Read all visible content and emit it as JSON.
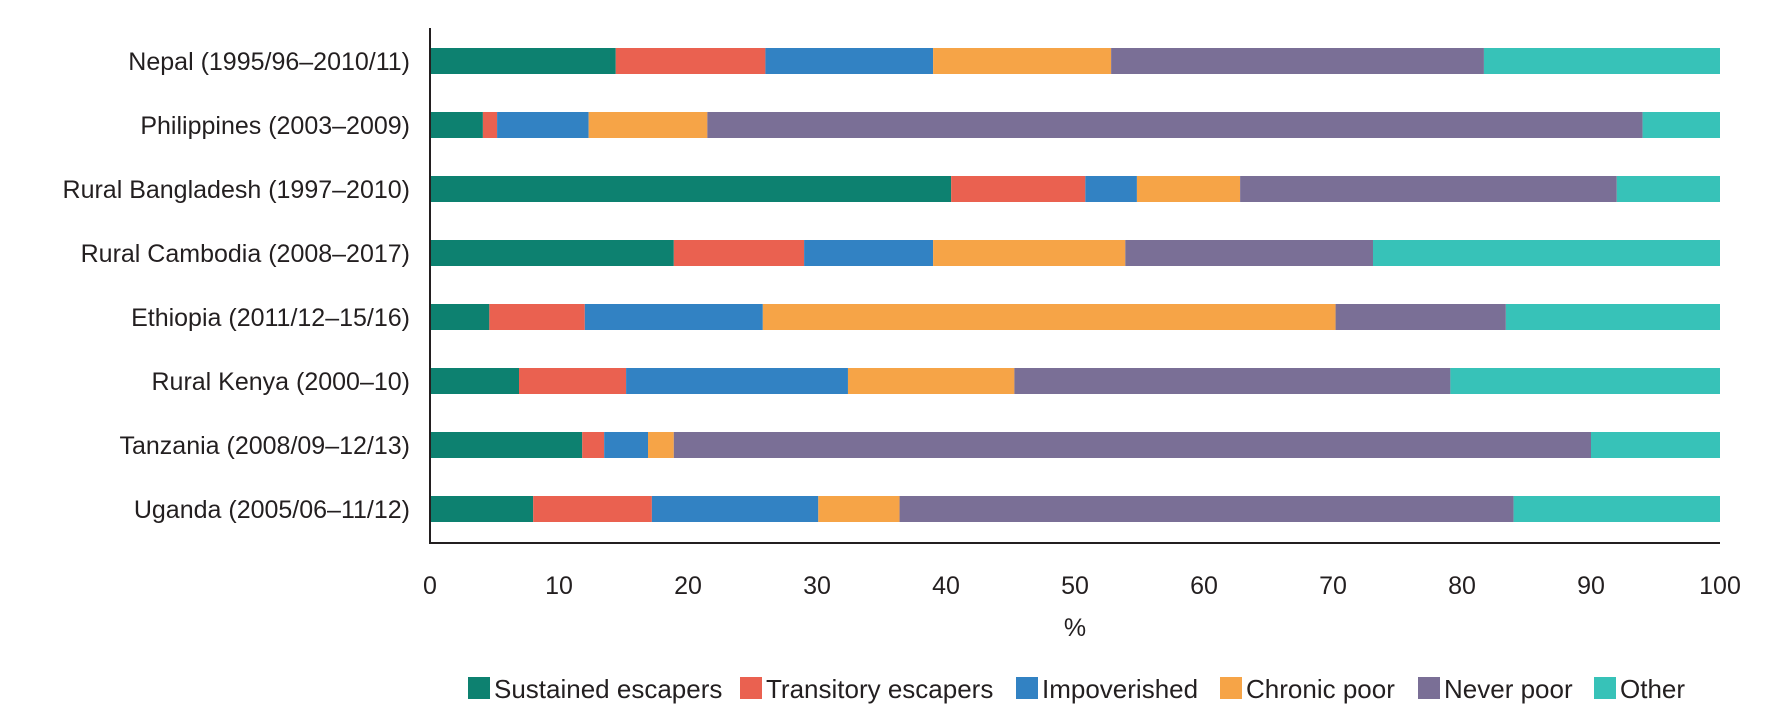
{
  "chart_data": {
    "type": "bar",
    "orientation": "horizontal",
    "stacked": true,
    "title": "",
    "xlabel": "%",
    "ylabel": "",
    "xlim": [
      0,
      100
    ],
    "xticks": [
      0,
      10,
      20,
      30,
      40,
      50,
      60,
      70,
      80,
      90,
      100
    ],
    "grid": false,
    "legend_position": "bottom",
    "categories": [
      "Nepal (1995/96–2010/11)",
      "Philippines (2003–2009)",
      "Rural Bangladesh (1997–2010)",
      "Rural Cambodia (2008–2017)",
      "Ethiopia (2011/12–15/16)",
      "Rural Kenya (2000–10)",
      "Tanzania (2008/09–12/13)",
      "Uganda (2005/06–11/12)"
    ],
    "series": [
      {
        "name": "Sustained escapers",
        "color": "#0d8170",
        "values": [
          14.4,
          4.1,
          40.4,
          18.9,
          4.6,
          6.9,
          11.8,
          8.0
        ]
      },
      {
        "name": "Transitory escapers",
        "color": "#ea6150",
        "values": [
          11.6,
          1.1,
          10.4,
          10.1,
          7.4,
          8.3,
          1.7,
          9.2
        ]
      },
      {
        "name": "Impoverished",
        "color": "#3282c3",
        "values": [
          13.0,
          7.1,
          4.0,
          10.0,
          13.8,
          17.2,
          3.4,
          12.9
        ]
      },
      {
        "name": "Chronic poor",
        "color": "#f6a447",
        "values": [
          13.8,
          9.2,
          8.0,
          14.9,
          44.4,
          12.9,
          2.0,
          6.3
        ]
      },
      {
        "name": "Never poor",
        "color": "#7a6f96",
        "values": [
          28.9,
          72.5,
          29.2,
          19.2,
          13.2,
          33.8,
          71.1,
          47.6
        ]
      },
      {
        "name": "Other",
        "color": "#37c2b8",
        "values": [
          18.3,
          6.0,
          8.0,
          26.9,
          16.6,
          20.9,
          10.0,
          16.0
        ]
      }
    ]
  }
}
